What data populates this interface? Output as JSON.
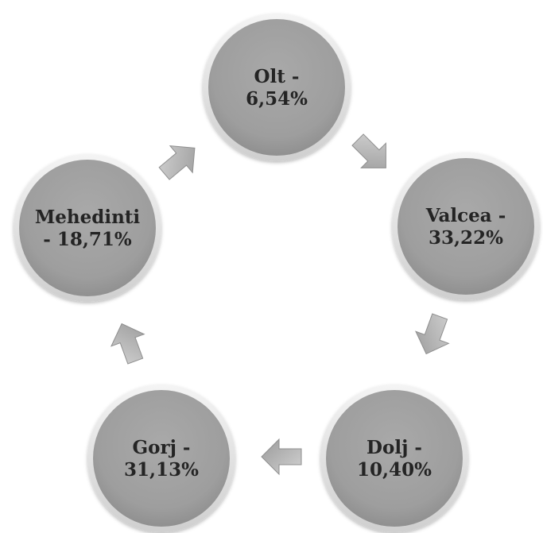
{
  "diagram": {
    "type": "cycle",
    "colors": {
      "circle_fill": "#a3a3a3",
      "circle_rim": "#eaeaea",
      "arrow_fill": "#b0b0b0",
      "text": "#242424"
    },
    "nodes": [
      {
        "id": "olt",
        "line1": "Olt -",
        "line2": "6,54%"
      },
      {
        "id": "valcea",
        "line1": "Valcea -",
        "line2": "33,22%"
      },
      {
        "id": "dolj",
        "line1": "Dolj -",
        "line2": "10,40%"
      },
      {
        "id": "gorj",
        "line1": "Gorj -",
        "line2": "31,13%"
      },
      {
        "id": "mehedinti",
        "line1": "Mehedinti",
        "line2": "- 18,71%"
      }
    ]
  }
}
